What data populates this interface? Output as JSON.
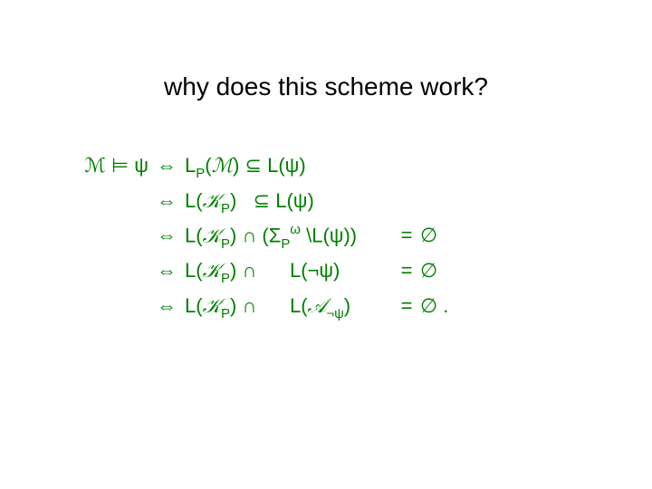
{
  "title": "why does this scheme work?",
  "colors": {
    "text": "#000000",
    "math": "#008000",
    "bg": "#ffffff"
  },
  "fontsize": {
    "title": 28,
    "math": 22
  },
  "math": {
    "lhs": "ℳ ⊨ ψ",
    "iff": "⇔",
    "rows": [
      {
        "rhs_html": "<span class='upL'>L</span><span class='sub'>P</span>(<span class='cal'>ℳ</span>) ⊆ <span class='upL'>L</span>(ψ)",
        "eq": "",
        "empty": ""
      },
      {
        "rhs_html": "<span class='upL'>L</span>(<span class='cal'>𝒦</span><span class='sub'>P</span>)&nbsp;&nbsp; ⊆ <span class='upL'>L</span>(ψ)",
        "eq": "",
        "empty": ""
      },
      {
        "rhs_html": "<span class='upL'>L</span>(<span class='cal'>𝒦</span><span class='sub'>P</span>) ∩ (Σ<span class='sub'>P</span><span class='sup'>ω</span> &#92;<span class='upL'>L</span>(ψ))",
        "eq": "=",
        "empty": "∅"
      },
      {
        "rhs_html": "<span class='upL'>L</span>(<span class='cal'>𝒦</span><span class='sub'>P</span>) ∩ &nbsp;&nbsp;&nbsp;&nbsp;&nbsp;<span class='upL'>L</span>(¬ψ)",
        "eq": "=",
        "empty": "∅"
      },
      {
        "rhs_html": "<span class='upL'>L</span>(<span class='cal'>𝒦</span><span class='sub'>P</span>) ∩ &nbsp;&nbsp;&nbsp;&nbsp;&nbsp;<span class='upL'>L</span>(<span class='cal'>𝒜</span><span class='sub'>¬ψ</span>)",
        "eq": "=",
        "empty": "∅ ."
      }
    ]
  }
}
